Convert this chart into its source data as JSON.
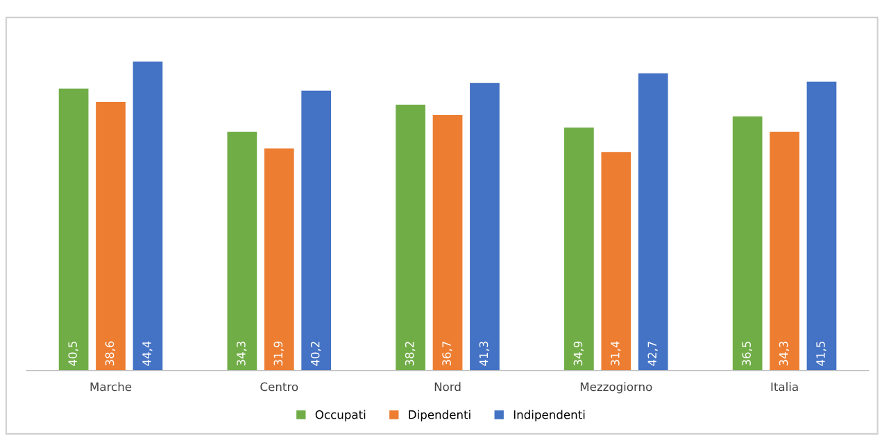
{
  "chart_data": {
    "type": "bar",
    "categories": [
      "Marche",
      "Centro",
      "Nord",
      "Mezzogiorno",
      "Italia"
    ],
    "series": [
      {
        "name": "Occupati",
        "color": "#70ad47",
        "values": [
          40.5,
          34.3,
          38.2,
          34.9,
          36.5
        ],
        "value_labels": [
          "40,5",
          "34,3",
          "38,2",
          "34,9",
          "36,5"
        ]
      },
      {
        "name": "Dipendenti",
        "color": "#ed7d31",
        "values": [
          38.6,
          31.9,
          36.7,
          31.4,
          34.3
        ],
        "value_labels": [
          "38,6",
          "31,9",
          "36,7",
          "31,4",
          "34,3"
        ]
      },
      {
        "name": "Indipendenti",
        "color": "#4472c4",
        "values": [
          44.4,
          40.2,
          41.3,
          42.7,
          41.5
        ],
        "value_labels": [
          "44,4",
          "40,2",
          "41,3",
          "42,7",
          "41,5"
        ]
      }
    ],
    "legend": "bottom",
    "grid": false
  }
}
